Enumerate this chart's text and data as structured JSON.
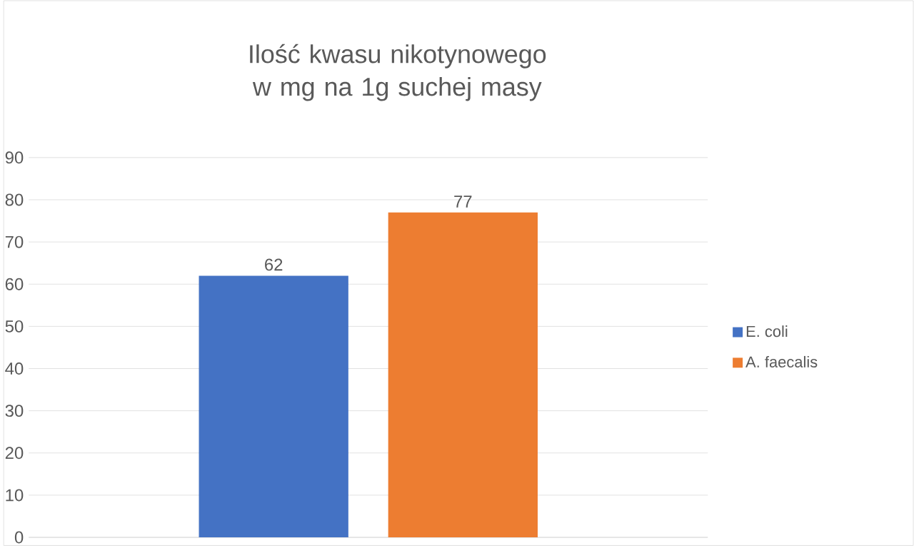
{
  "chart_data": {
    "type": "bar",
    "title": "Ilość kwasu nikotynowego w mg na 1g suchej masy",
    "categories": [
      null
    ],
    "series": [
      {
        "name": "E. coli",
        "color": "#4472c4",
        "values": [
          62
        ]
      },
      {
        "name": "A. faecalis",
        "color": "#ed7d31",
        "values": [
          77
        ]
      }
    ],
    "ylim": [
      0,
      90
    ],
    "yticks": [
      0,
      10,
      20,
      30,
      40,
      50,
      60,
      70,
      80,
      90
    ],
    "grid": "y",
    "legend": "right",
    "data_labels": true
  }
}
